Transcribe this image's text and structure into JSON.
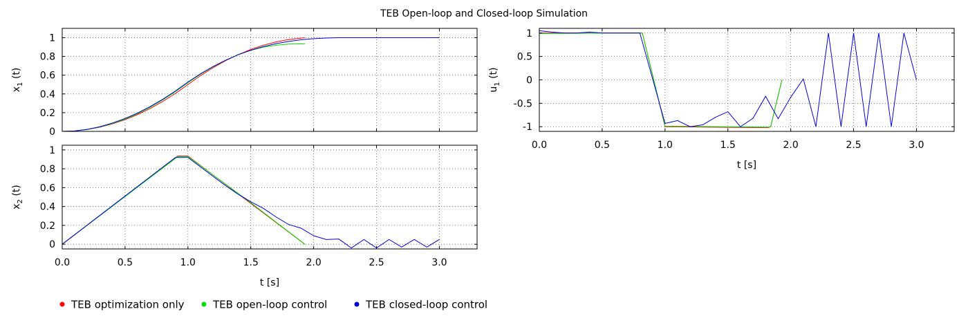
{
  "figure": {
    "title": "TEB Open-loop and Closed-loop Simulation",
    "legend_placement": "bottom-left",
    "colors": {
      "optimization": "#ff0000",
      "open_loop": "#00dd00",
      "closed_loop": "#0000dd"
    },
    "legend": [
      {
        "name": "TEB optimization only",
        "color": "#ff0000"
      },
      {
        "name": "TEB open-loop control",
        "color": "#00dd00"
      },
      {
        "name": "TEB closed-loop control",
        "color": "#0000dd"
      }
    ]
  },
  "chart_data": [
    {
      "type": "line",
      "id": "x1",
      "ylabel": "x",
      "ylabel_sub": "1",
      "ylabel_suffix": " (t)",
      "xlabel": "",
      "xlim": [
        0,
        3.3
      ],
      "ylim": [
        0,
        1.1
      ],
      "xticks": [
        0,
        0.5,
        1,
        1.5,
        2,
        2.5,
        3
      ],
      "xtick_labels": [],
      "yticks": [
        0,
        0.2,
        0.4,
        0.6,
        0.8,
        1
      ],
      "ytick_labels": [
        "0",
        "0.2",
        "0.4",
        "0.6",
        "0.8",
        "1"
      ],
      "grid": true,
      "series": [
        {
          "name": "TEB optimization only",
          "color": "#ff0000",
          "x": [
            0,
            0.1,
            0.2,
            0.3,
            0.4,
            0.5,
            0.6,
            0.7,
            0.8,
            0.9,
            1.0,
            1.1,
            1.2,
            1.3,
            1.4,
            1.5,
            1.6,
            1.7,
            1.8,
            1.93
          ],
          "y": [
            0,
            0.005,
            0.02,
            0.045,
            0.08,
            0.125,
            0.18,
            0.245,
            0.32,
            0.405,
            0.5,
            0.595,
            0.68,
            0.755,
            0.82,
            0.875,
            0.92,
            0.955,
            0.98,
            1.0
          ]
        },
        {
          "name": "TEB open-loop control",
          "color": "#00dd00",
          "x": [
            0,
            0.1,
            0.2,
            0.3,
            0.4,
            0.5,
            0.6,
            0.7,
            0.8,
            0.9,
            1.0,
            1.1,
            1.2,
            1.3,
            1.4,
            1.5,
            1.6,
            1.7,
            1.8,
            1.93
          ],
          "y": [
            0,
            0.005,
            0.02,
            0.047,
            0.085,
            0.132,
            0.19,
            0.258,
            0.336,
            0.424,
            0.52,
            0.61,
            0.69,
            0.76,
            0.82,
            0.865,
            0.9,
            0.92,
            0.932,
            0.935
          ]
        },
        {
          "name": "TEB closed-loop control",
          "color": "#0000dd",
          "x": [
            0,
            0.1,
            0.2,
            0.3,
            0.4,
            0.5,
            0.6,
            0.7,
            0.8,
            0.9,
            1.0,
            1.1,
            1.2,
            1.3,
            1.4,
            1.5,
            1.6,
            1.7,
            1.8,
            1.9,
            2.0,
            2.1,
            2.2,
            2.3,
            2.4,
            2.5,
            2.6,
            2.7,
            2.8,
            2.9,
            3.0
          ],
          "y": [
            0,
            0.005,
            0.022,
            0.05,
            0.09,
            0.138,
            0.196,
            0.265,
            0.343,
            0.431,
            0.527,
            0.615,
            0.693,
            0.76,
            0.818,
            0.866,
            0.905,
            0.937,
            0.96,
            0.978,
            0.99,
            0.997,
            1.0,
            1.0,
            1.0,
            1.0,
            1.0,
            1.0,
            1.0,
            1.0,
            1.0
          ]
        }
      ]
    },
    {
      "type": "line",
      "id": "x2",
      "ylabel": "x",
      "ylabel_sub": "2",
      "ylabel_suffix": " (t)",
      "xlabel": "t [s]",
      "xlim": [
        0,
        3.3
      ],
      "ylim": [
        -0.05,
        1.05
      ],
      "xticks": [
        0,
        0.5,
        1,
        1.5,
        2,
        2.5,
        3
      ],
      "xtick_labels": [
        "0.0",
        "0.5",
        "1.0",
        "1.5",
        "2.0",
        "2.5",
        "3.0"
      ],
      "yticks": [
        0,
        0.2,
        0.4,
        0.6,
        0.8,
        1
      ],
      "ytick_labels": [
        "0",
        "0.2",
        "0.4",
        "0.6",
        "0.8",
        "1"
      ],
      "grid": true,
      "series": [
        {
          "name": "TEB optimization only",
          "color": "#ff0000",
          "x": [
            0,
            0.92,
            1.0,
            1.93
          ],
          "y": [
            0,
            0.935,
            0.935,
            0.0
          ]
        },
        {
          "name": "TEB open-loop control",
          "color": "#00dd00",
          "x": [
            0,
            0.92,
            1.0,
            1.5,
            1.93
          ],
          "y": [
            0,
            0.93,
            0.93,
            0.44,
            0.0
          ]
        },
        {
          "name": "TEB closed-loop control",
          "color": "#0000dd",
          "x": [
            0,
            0.9,
            1.0,
            1.1,
            1.2,
            1.3,
            1.4,
            1.5,
            1.6,
            1.7,
            1.8,
            1.9,
            2.0,
            2.1,
            2.2,
            2.3,
            2.4,
            2.5,
            2.6,
            2.7,
            2.8,
            2.9,
            3.0
          ],
          "y": [
            0,
            0.92,
            0.92,
            0.82,
            0.72,
            0.62,
            0.53,
            0.45,
            0.38,
            0.29,
            0.21,
            0.17,
            0.09,
            0.05,
            0.055,
            -0.04,
            0.05,
            -0.04,
            0.05,
            -0.03,
            0.05,
            -0.03,
            0.05
          ]
        }
      ]
    },
    {
      "type": "line",
      "id": "u1",
      "ylabel": "u",
      "ylabel_sub": "1",
      "ylabel_suffix": " (t)",
      "xlabel": "t [s]",
      "xlim": [
        0,
        3.3
      ],
      "ylim": [
        -1.1,
        1.1
      ],
      "xticks": [
        0,
        0.5,
        1,
        1.5,
        2,
        2.5,
        3
      ],
      "xtick_labels": [
        "0.0",
        "0.5",
        "1.0",
        "1.5",
        "2.0",
        "2.5",
        "3.0"
      ],
      "yticks": [
        -1,
        -0.5,
        0,
        0.5,
        1
      ],
      "ytick_labels": [
        "-1",
        "-0.5",
        "0",
        "0.5",
        "1"
      ],
      "grid": true,
      "series": [
        {
          "name": "TEB optimization only",
          "color": "#ff0000",
          "x": [
            0,
            0.8,
            0.82,
            1.0,
            1.82,
            1.84,
            1.93
          ],
          "y": [
            1.0,
            1.0,
            1.0,
            -1.0,
            -1.02,
            -1.0,
            0.0
          ]
        },
        {
          "name": "TEB open-loop control",
          "color": "#00dd00",
          "x": [
            0,
            0.8,
            0.82,
            1.0,
            1.82,
            1.84,
            1.93
          ],
          "y": [
            0.99,
            1.0,
            1.0,
            -0.99,
            -1.01,
            -1.0,
            0.0
          ]
        },
        {
          "name": "TEB closed-loop control",
          "color": "#0000dd",
          "x": [
            0,
            0.1,
            0.2,
            0.3,
            0.4,
            0.5,
            0.6,
            0.7,
            0.8,
            1.0,
            1.1,
            1.2,
            1.3,
            1.4,
            1.5,
            1.6,
            1.7,
            1.8,
            1.9,
            2.0,
            2.1,
            2.2,
            2.3,
            2.4,
            2.5,
            2.6,
            2.7,
            2.8,
            2.9,
            3.0
          ],
          "y": [
            1.05,
            1.02,
            1.0,
            1.0,
            1.02,
            1.0,
            1.0,
            1.0,
            1.0,
            -0.93,
            -0.87,
            -1.0,
            -0.96,
            -0.8,
            -0.68,
            -1.0,
            -0.82,
            -0.35,
            -0.83,
            -0.37,
            0.02,
            -1.0,
            1.0,
            -1.0,
            1.0,
            -1.0,
            1.0,
            -1.0,
            1.0,
            0.0
          ]
        }
      ]
    }
  ]
}
